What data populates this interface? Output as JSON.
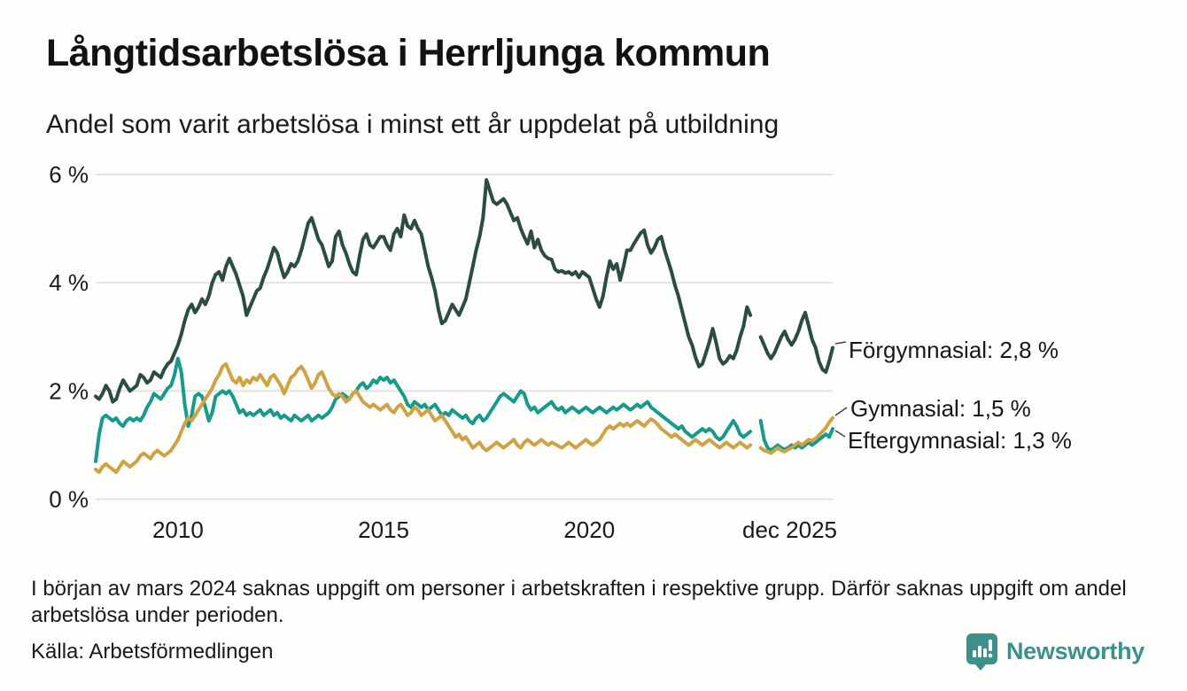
{
  "header": {
    "title": "Långtidsarbetslösa i Herrljunga kommun",
    "subtitle": "Andel som varit arbetslösa i minst ett år uppdelat på utbildning"
  },
  "chart_data": {
    "type": "line",
    "unit": "%",
    "x_start_year": 2008,
    "x_resolution": "monthly",
    "ylim": [
      0,
      6
    ],
    "grid": "horizontal",
    "missing_data_note": "data gap jan–feb 2024",
    "y_ticks": [
      {
        "value": 0,
        "label": "0 %"
      },
      {
        "value": 2,
        "label": "2 %"
      },
      {
        "value": 4,
        "label": "4 %"
      },
      {
        "value": 6,
        "label": "6 %"
      }
    ],
    "x_ticks": [
      {
        "year": 2010,
        "label": "2010",
        "align": "center"
      },
      {
        "year": 2015,
        "label": "2015",
        "align": "center"
      },
      {
        "year": 2020,
        "label": "2020",
        "align": "center"
      },
      {
        "year": 2025.9167,
        "label": "dec 2025",
        "align": "end"
      }
    ],
    "series": [
      {
        "name": "Förgymnasial",
        "color": "#2b4c41",
        "end_value": 2.8,
        "end_label": "Förgymnasial: 2,8 %",
        "values": [
          1.9,
          1.85,
          1.95,
          2.1,
          2.0,
          1.8,
          1.85,
          2.05,
          2.2,
          2.1,
          2.0,
          2.05,
          2.1,
          2.3,
          2.25,
          2.15,
          2.2,
          2.35,
          2.3,
          2.25,
          2.4,
          2.5,
          2.55,
          2.7,
          2.85,
          3.05,
          3.3,
          3.5,
          3.6,
          3.45,
          3.55,
          3.7,
          3.6,
          3.75,
          4.0,
          4.15,
          4.2,
          4.05,
          4.3,
          4.45,
          4.3,
          4.15,
          3.95,
          3.75,
          3.4,
          3.55,
          3.7,
          3.85,
          3.9,
          4.1,
          4.25,
          4.45,
          4.65,
          4.55,
          4.3,
          4.1,
          4.2,
          4.35,
          4.3,
          4.4,
          4.6,
          4.85,
          5.1,
          5.2,
          5.0,
          4.8,
          4.7,
          4.5,
          4.3,
          4.4,
          4.85,
          4.95,
          4.7,
          4.55,
          4.35,
          4.2,
          4.15,
          4.5,
          4.8,
          4.9,
          4.7,
          4.65,
          4.75,
          4.85,
          4.85,
          4.7,
          4.6,
          4.9,
          5.0,
          4.85,
          5.25,
          5.05,
          5.0,
          5.15,
          5.0,
          4.9,
          4.6,
          4.3,
          4.1,
          3.85,
          3.5,
          3.25,
          3.3,
          3.45,
          3.6,
          3.5,
          3.4,
          3.55,
          3.7,
          4.0,
          4.3,
          4.6,
          4.85,
          5.2,
          5.9,
          5.7,
          5.5,
          5.45,
          5.5,
          5.55,
          5.45,
          5.3,
          5.15,
          5.2,
          5.0,
          4.85,
          4.72,
          4.95,
          4.65,
          4.8,
          4.6,
          4.5,
          4.45,
          4.43,
          4.25,
          4.2,
          4.22,
          4.18,
          4.2,
          4.15,
          4.2,
          4.1,
          4.2,
          4.15,
          4.1,
          3.9,
          3.7,
          3.55,
          3.75,
          4.1,
          4.4,
          4.25,
          4.35,
          4.05,
          4.3,
          4.6,
          4.6,
          4.72,
          4.82,
          4.92,
          4.97,
          4.7,
          4.55,
          4.65,
          4.8,
          4.85,
          4.6,
          4.4,
          4.2,
          3.95,
          3.75,
          3.5,
          3.25,
          3.0,
          2.85,
          2.62,
          2.45,
          2.5,
          2.7,
          2.9,
          3.15,
          2.9,
          2.6,
          2.5,
          2.55,
          2.65,
          2.6,
          2.75,
          3.0,
          3.2,
          3.55,
          3.4,
          null,
          null,
          3.0,
          2.85,
          2.7,
          2.6,
          2.7,
          2.85,
          3.0,
          3.1,
          2.95,
          2.85,
          2.95,
          3.1,
          3.3,
          3.45,
          3.2,
          2.95,
          2.8,
          2.55,
          2.4,
          2.35,
          2.55,
          2.8
        ]
      },
      {
        "name": "Gymnasial",
        "color": "#d0a243",
        "end_value": 1.5,
        "end_label": "Gymnasial: 1,5 %",
        "values": [
          0.55,
          0.5,
          0.6,
          0.65,
          0.6,
          0.55,
          0.5,
          0.6,
          0.7,
          0.65,
          0.6,
          0.65,
          0.7,
          0.8,
          0.85,
          0.8,
          0.75,
          0.85,
          0.9,
          0.85,
          0.8,
          0.85,
          0.9,
          1.0,
          1.1,
          1.25,
          1.4,
          1.5,
          1.45,
          1.55,
          1.65,
          1.75,
          1.85,
          1.95,
          2.05,
          2.2,
          2.3,
          2.45,
          2.5,
          2.35,
          2.2,
          2.15,
          2.25,
          2.1,
          2.2,
          2.15,
          2.25,
          2.2,
          2.3,
          2.2,
          2.1,
          2.25,
          2.3,
          2.2,
          2.1,
          1.95,
          2.1,
          2.25,
          2.3,
          2.4,
          2.45,
          2.35,
          2.2,
          2.05,
          2.15,
          2.3,
          2.35,
          2.2,
          2.05,
          1.95,
          1.9,
          1.95,
          1.9,
          1.8,
          1.85,
          1.95,
          2.0,
          1.9,
          1.8,
          1.75,
          1.7,
          1.75,
          1.7,
          1.65,
          1.7,
          1.75,
          1.65,
          1.6,
          1.7,
          1.75,
          1.65,
          1.55,
          1.6,
          1.7,
          1.65,
          1.55,
          1.6,
          1.65,
          1.55,
          1.45,
          1.5,
          1.55,
          1.45,
          1.35,
          1.25,
          1.15,
          1.2,
          1.1,
          1.15,
          1.05,
          0.95,
          1.0,
          1.05,
          0.95,
          0.9,
          0.95,
          1.0,
          1.05,
          1.0,
          0.95,
          1.0,
          1.05,
          1.1,
          1.0,
          0.95,
          1.05,
          1.1,
          1.05,
          1.0,
          1.05,
          1.1,
          1.05,
          1.0,
          1.05,
          1.02,
          0.98,
          0.95,
          1.0,
          1.05,
          1.0,
          0.95,
          1.0,
          1.05,
          1.1,
          1.05,
          1.0,
          1.05,
          1.1,
          1.2,
          1.3,
          1.35,
          1.3,
          1.35,
          1.4,
          1.35,
          1.4,
          1.35,
          1.4,
          1.45,
          1.4,
          1.35,
          1.42,
          1.48,
          1.44,
          1.38,
          1.3,
          1.25,
          1.2,
          1.15,
          1.2,
          1.15,
          1.1,
          1.05,
          1.0,
          1.05,
          1.1,
          1.05,
          1.0,
          1.05,
          1.1,
          1.05,
          1.0,
          0.95,
          1.0,
          1.05,
          1.0,
          0.95,
          1.0,
          1.05,
          1.0,
          0.95,
          1.0,
          null,
          null,
          0.95,
          0.9,
          0.88,
          0.85,
          0.9,
          0.95,
          0.9,
          0.88,
          0.92,
          0.95,
          1.0,
          1.05,
          1.0,
          1.05,
          1.1,
          1.08,
          1.12,
          1.18,
          1.25,
          1.32,
          1.42,
          1.5
        ]
      },
      {
        "name": "Eftergymnasial",
        "color": "#169a8b",
        "end_value": 1.3,
        "end_label": "Eftergymnasial: 1,3 %",
        "values": [
          0.7,
          1.2,
          1.5,
          1.55,
          1.5,
          1.45,
          1.5,
          1.4,
          1.35,
          1.45,
          1.5,
          1.45,
          1.5,
          1.45,
          1.55,
          1.7,
          1.8,
          1.95,
          1.9,
          1.85,
          1.95,
          2.05,
          2.1,
          2.3,
          2.6,
          2.35,
          1.75,
          1.35,
          1.55,
          1.9,
          1.95,
          1.9,
          1.7,
          1.45,
          1.6,
          1.9,
          1.95,
          2.0,
          1.95,
          2.0,
          1.9,
          1.75,
          1.6,
          1.65,
          1.55,
          1.6,
          1.55,
          1.6,
          1.65,
          1.55,
          1.6,
          1.65,
          1.55,
          1.6,
          1.5,
          1.55,
          1.5,
          1.45,
          1.55,
          1.5,
          1.45,
          1.5,
          1.55,
          1.45,
          1.5,
          1.55,
          1.5,
          1.55,
          1.6,
          1.7,
          1.85,
          1.9,
          1.95,
          1.9,
          1.85,
          1.95,
          2.0,
          2.1,
          2.15,
          2.05,
          2.1,
          2.2,
          2.15,
          2.25,
          2.2,
          2.25,
          2.15,
          2.2,
          2.1,
          2.0,
          1.9,
          1.75,
          1.7,
          1.8,
          1.75,
          1.7,
          1.75,
          1.65,
          1.7,
          1.75,
          1.65,
          1.55,
          1.6,
          1.55,
          1.65,
          1.6,
          1.55,
          1.5,
          1.55,
          1.45,
          1.4,
          1.5,
          1.55,
          1.45,
          1.5,
          1.6,
          1.7,
          1.8,
          1.9,
          1.95,
          1.9,
          1.85,
          1.8,
          1.9,
          2.0,
          1.95,
          1.75,
          1.65,
          1.7,
          1.6,
          1.65,
          1.7,
          1.75,
          1.8,
          1.7,
          1.65,
          1.7,
          1.6,
          1.65,
          1.7,
          1.65,
          1.6,
          1.65,
          1.7,
          1.65,
          1.6,
          1.65,
          1.7,
          1.65,
          1.6,
          1.65,
          1.7,
          1.65,
          1.7,
          1.75,
          1.7,
          1.65,
          1.7,
          1.75,
          1.7,
          1.75,
          1.8,
          1.7,
          1.65,
          1.6,
          1.55,
          1.5,
          1.45,
          1.4,
          1.35,
          1.3,
          1.35,
          1.25,
          1.2,
          1.15,
          1.2,
          1.25,
          1.3,
          1.25,
          1.3,
          1.25,
          1.15,
          1.1,
          1.15,
          1.25,
          1.35,
          1.45,
          1.35,
          1.2,
          1.15,
          1.2,
          1.25,
          null,
          null,
          1.45,
          1.1,
          0.95,
          0.9,
          0.95,
          1.0,
          0.95,
          0.92,
          0.95,
          1.0,
          0.95,
          1.0,
          0.95,
          1.0,
          1.05,
          1.0,
          1.05,
          1.1,
          1.15,
          1.2,
          1.15,
          1.3
        ]
      }
    ]
  },
  "footnote": {
    "text": "I början av mars 2024 saknas uppgift om personer i arbetskraften i respektive grupp. Därför saknas uppgift om andel arbetslösa under perioden."
  },
  "source": {
    "label": "Källa: Arbetsförmedlingen"
  },
  "branding": {
    "name": "Newsworthy",
    "icon": "newsworthy-pin-barchart-icon",
    "color": "#3e918b"
  },
  "colors": {
    "background": "#fdfdfb",
    "gridline": "#e4e4e4",
    "text": "#1a1a1a",
    "leader_line": "#444444"
  }
}
